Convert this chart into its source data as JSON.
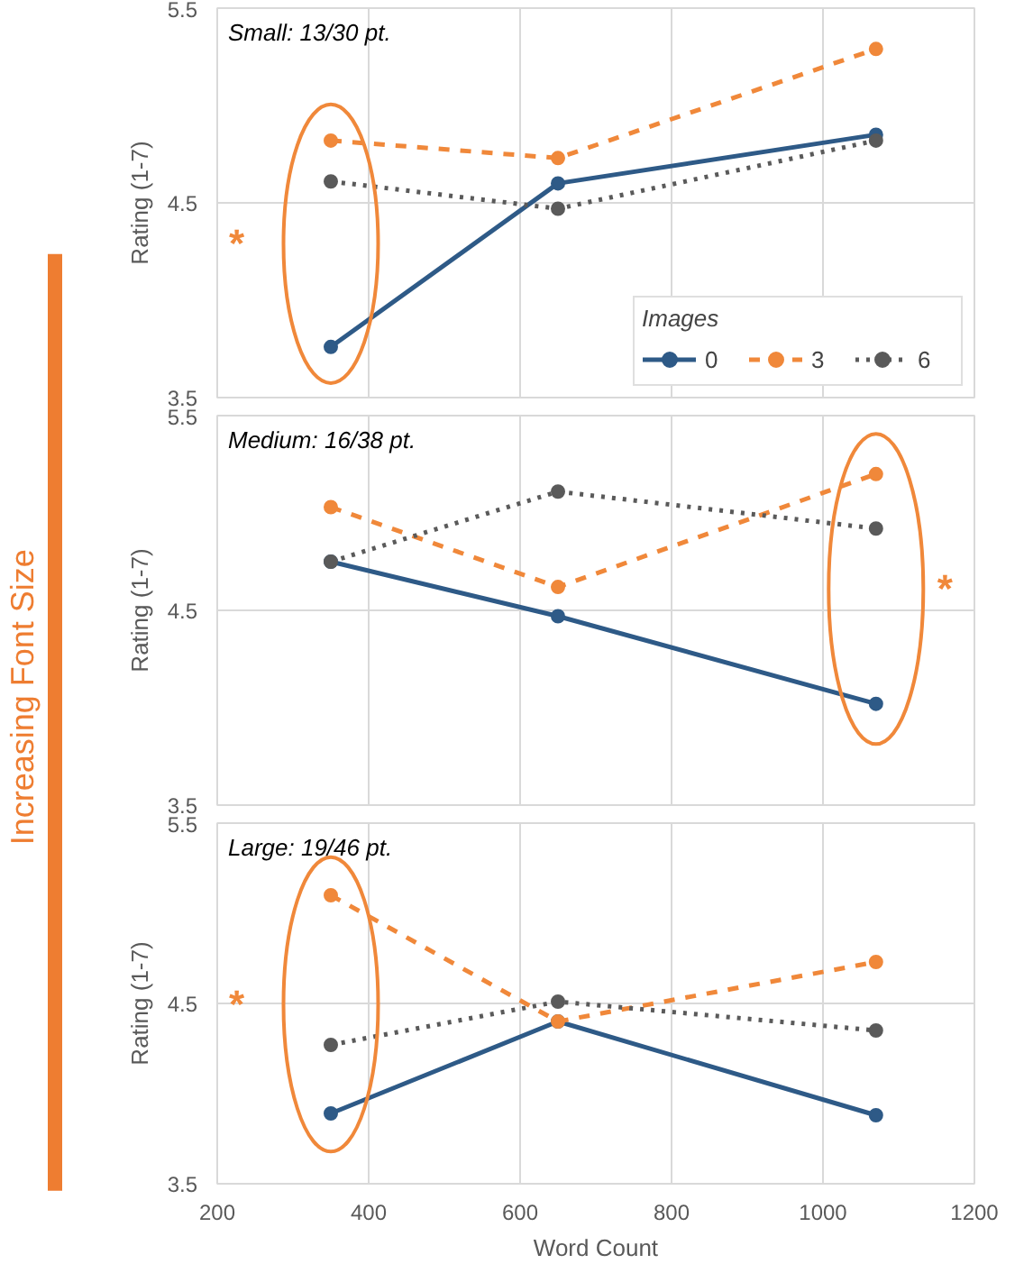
{
  "chart_data": [
    {
      "type": "line",
      "title": "Small: 13/30 pt.",
      "ylabel": "Rating (1-7)",
      "x": [
        350,
        650,
        1070
      ],
      "xlim": [
        200,
        1200
      ],
      "xticks": [
        200,
        400,
        600,
        800,
        1000,
        1200
      ],
      "ylim": [
        3.5,
        5.5
      ],
      "yticks": [
        3.5,
        4.5,
        5.5
      ],
      "grid": true,
      "marker": "circle",
      "tick_labels": "y",
      "legend": "bottom right",
      "legend_title": "Images",
      "series": [
        {
          "name": "0",
          "color": "#2e5a87",
          "line_style": "solid",
          "values": [
            3.76,
            4.6,
            4.85
          ]
        },
        {
          "name": "3",
          "color": "#f0883a",
          "line_style": "dashed",
          "values": [
            4.82,
            4.73,
            5.29
          ]
        },
        {
          "name": "6",
          "color": "#5a5a5a",
          "line_style": "dotted",
          "values": [
            4.61,
            4.47,
            4.82
          ]
        }
      ],
      "annotations": [
        "*",
        "Increasing Font Size"
      ]
    },
    {
      "type": "line",
      "title": "Medium: 16/38 pt.",
      "ylabel": "Rating (1-7)",
      "x": [
        350,
        650,
        1070
      ],
      "xlim": [
        200,
        1200
      ],
      "xticks": [
        200,
        400,
        600,
        800,
        1000,
        1200
      ],
      "ylim": [
        3.5,
        5.5
      ],
      "yticks": [
        3.5,
        4.5,
        5.5
      ],
      "grid": true,
      "marker": "circle",
      "tick_labels": "y",
      "series": [
        {
          "color": "#2e5a87",
          "line_style": "solid",
          "values": [
            4.75,
            4.47,
            4.02
          ]
        },
        {
          "color": "#f0883a",
          "line_style": "dashed",
          "values": [
            5.03,
            4.62,
            5.2
          ]
        },
        {
          "color": "#5a5a5a",
          "line_style": "dotted",
          "values": [
            4.75,
            5.11,
            4.92
          ]
        }
      ],
      "annotations": [
        "*"
      ]
    },
    {
      "type": "line",
      "title": "Large: 19/46 pt.",
      "ylabel": "Rating (1-7)",
      "xlabel": "Word Count",
      "x": [
        350,
        650,
        1070
      ],
      "xlim": [
        200,
        1200
      ],
      "xticks": [
        200,
        400,
        600,
        800,
        1000,
        1200
      ],
      "ylim": [
        3.5,
        5.5
      ],
      "yticks": [
        3.5,
        4.5,
        5.5
      ],
      "grid": true,
      "marker": "circle",
      "series": [
        {
          "color": "#2e5a87",
          "line_style": "solid",
          "values": [
            3.89,
            4.4,
            3.88
          ]
        },
        {
          "color": "#f0883a",
          "line_style": "dashed",
          "values": [
            5.1,
            4.4,
            4.73
          ]
        },
        {
          "color": "#5a5a5a",
          "line_style": "dotted",
          "values": [
            4.27,
            4.51,
            4.35
          ]
        }
      ],
      "annotations": [
        "*"
      ]
    }
  ]
}
